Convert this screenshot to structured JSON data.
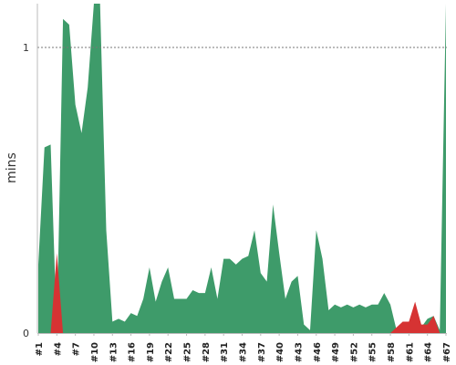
{
  "chart_data": {
    "type": "area",
    "title": "",
    "xlabel": "",
    "ylabel": "mins",
    "ylim": [
      0,
      1
    ],
    "y_ticks": [
      "0",
      "1"
    ],
    "reference_line": {
      "y": 1,
      "style": "dotted",
      "color": "#777777"
    },
    "grid": false,
    "legend": "none",
    "x_tick_labels": [
      "#1",
      "#4",
      "#7",
      "#10",
      "#13",
      "#16",
      "#19",
      "#22",
      "#25",
      "#28",
      "#31",
      "#34",
      "#37",
      "#40",
      "#43",
      "#46",
      "#49",
      "#52",
      "#55",
      "#58",
      "#61",
      "#64",
      "#67"
    ],
    "x": [
      1,
      2,
      3,
      4,
      5,
      6,
      7,
      8,
      9,
      10,
      11,
      12,
      13,
      14,
      15,
      16,
      17,
      18,
      19,
      20,
      21,
      22,
      23,
      24,
      25,
      26,
      27,
      28,
      29,
      30,
      31,
      32,
      33,
      34,
      35,
      36,
      37,
      38,
      39,
      40,
      41,
      42,
      43,
      44,
      45,
      46,
      47,
      48,
      49,
      50,
      51,
      52,
      53,
      54,
      55,
      56,
      57,
      58,
      59,
      60,
      61,
      62,
      63,
      64,
      65,
      66,
      67
    ],
    "series": [
      {
        "color": "#3e9b6a",
        "values": [
          0.24,
          0.65,
          0.66,
          0,
          1.1,
          1.08,
          0.8,
          0.7,
          0.86,
          1.16,
          1.16,
          0.36,
          0.04,
          0.05,
          0.04,
          0.07,
          0.06,
          0.12,
          0.23,
          0.11,
          0.18,
          0.23,
          0.12,
          0.12,
          0.12,
          0.15,
          0.14,
          0.14,
          0.23,
          0.12,
          0.26,
          0.26,
          0.24,
          0.26,
          0.27,
          0.36,
          0.21,
          0.18,
          0.45,
          0.28,
          0.12,
          0.18,
          0.2,
          0.03,
          0.01,
          0.36,
          0.26,
          0.08,
          0.1,
          0.09,
          0.1,
          0.09,
          0.1,
          0.09,
          0.1,
          0.1,
          0.14,
          0.1,
          0.01,
          0.04,
          0.04,
          0,
          0.02,
          0.05,
          0.06,
          0.01,
          1.16
        ]
      },
      {
        "color": "#d63333",
        "values": [
          0,
          0,
          0,
          0.28,
          0,
          0,
          0,
          0,
          0,
          0,
          0,
          0,
          0,
          0,
          0,
          0,
          0,
          0,
          0,
          0,
          0,
          0,
          0,
          0,
          0,
          0,
          0,
          0,
          0,
          0,
          0,
          0,
          0,
          0,
          0,
          0,
          0,
          0,
          0,
          0,
          0,
          0,
          0,
          0,
          0,
          0,
          0,
          0,
          0,
          0,
          0,
          0,
          0,
          0,
          0,
          0,
          0,
          0,
          0.02,
          0.04,
          0.04,
          0.11,
          0.03,
          0.03,
          0.06,
          0,
          0
        ]
      }
    ]
  }
}
